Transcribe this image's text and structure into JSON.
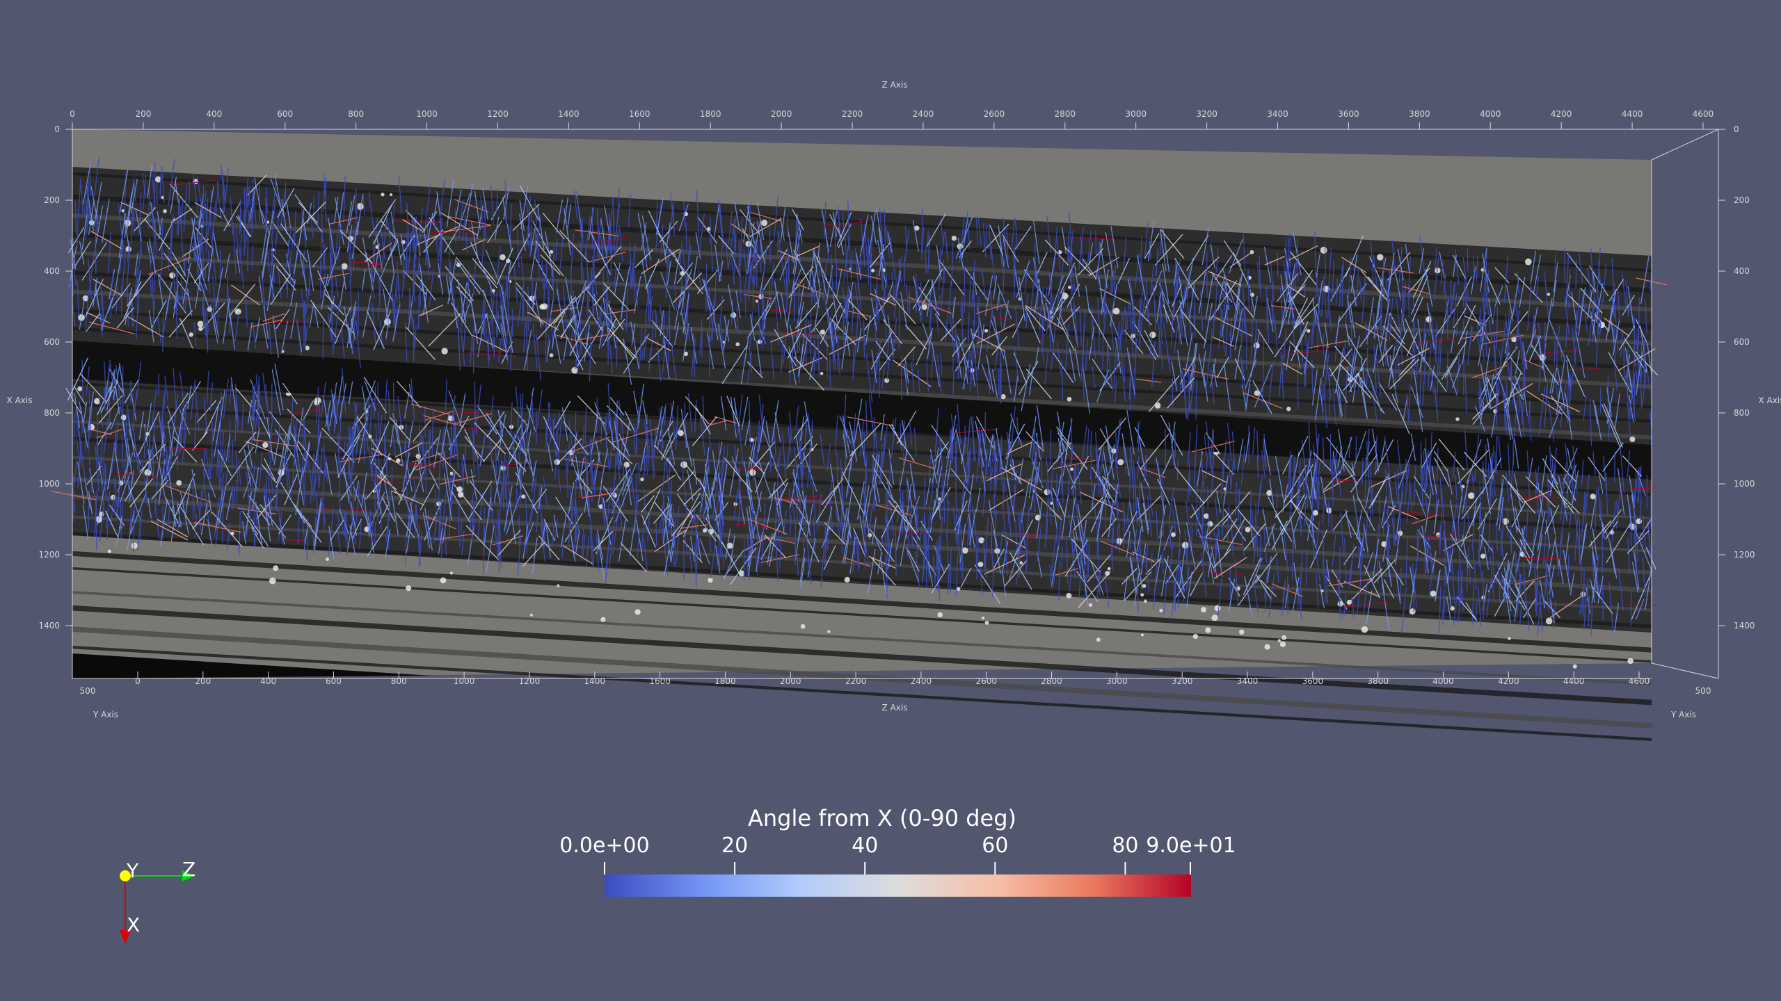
{
  "scene": {
    "background_color": "#52566e",
    "image_tint": "grayscale CT slice",
    "glyph_color_low": "#3b4cc0",
    "glyph_color_high": "#b40426"
  },
  "axes": {
    "top_title": "Z Axis",
    "bottom_title": "Z Axis",
    "left_title": "X Axis",
    "right_title": "X Axis",
    "bottom_left_title": "Y Axis",
    "bottom_right_title": "Y Axis",
    "top_ticks": [
      "0",
      "200",
      "400",
      "600",
      "800",
      "1000",
      "1200",
      "1400",
      "1600",
      "1800",
      "2000",
      "2200",
      "2400",
      "2600",
      "2800",
      "3000",
      "3200",
      "3400",
      "3600",
      "3800",
      "4000",
      "4200",
      "4400",
      "4600"
    ],
    "bottom_ticks": [
      "0",
      "200",
      "400",
      "600",
      "800",
      "1000",
      "1200",
      "1400",
      "1600",
      "1800",
      "2000",
      "2200",
      "2400",
      "2600",
      "2800",
      "3000",
      "3200",
      "3400",
      "3600",
      "3800",
      "4000",
      "4200",
      "4400",
      "4600"
    ],
    "left_ticks": [
      "0",
      "200",
      "400",
      "600",
      "800",
      "1000",
      "1200",
      "1400"
    ],
    "right_ticks": [
      "0",
      "200",
      "400",
      "600",
      "800",
      "1000",
      "1200",
      "1400"
    ],
    "y_depth_left": "500",
    "y_depth_right": "500"
  },
  "colorbar": {
    "title": "Angle from X (0-90 deg)",
    "min_label": "0.0e+00",
    "max_label": "9.0e+01",
    "tick_labels": [
      "20",
      "40",
      "60",
      "80"
    ],
    "range": [
      0,
      90
    ],
    "colormap": [
      "#3b4cc0",
      "#7396f5",
      "#b0cbfc",
      "#dddddd",
      "#f6bfa6",
      "#ea7b60",
      "#b40426"
    ]
  },
  "orientation": {
    "y_label": "Y",
    "z_label": "Z",
    "x_label": "X",
    "y_color": "#ffff00",
    "z_color": "#00dd00",
    "x_color": "#dd0000"
  }
}
